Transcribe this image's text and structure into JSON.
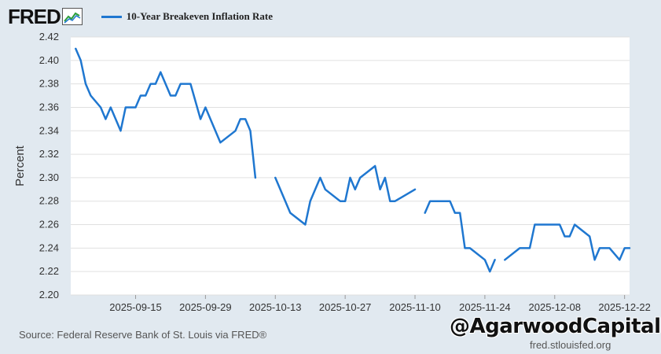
{
  "header": {
    "logo_text": "FRED",
    "logo_icon": "trend-line-icon",
    "legend_label": "10-Year Breakeven Inflation Rate",
    "series_color": "#1f77d0"
  },
  "footer": {
    "source": "Source: Federal Reserve Bank of St. Louis via FRED®",
    "url": "fred.stlouisfed.org",
    "watermark": "@AgarwoodCapital"
  },
  "chart_data": {
    "type": "line",
    "ylabel": "Percent",
    "ylim": [
      2.2,
      2.42
    ],
    "yticks": [
      "2.20",
      "2.22",
      "2.24",
      "2.26",
      "2.28",
      "2.30",
      "2.32",
      "2.34",
      "2.36",
      "2.38",
      "2.40",
      "2.42"
    ],
    "xlim": [
      "2025-09-02",
      "2025-12-23"
    ],
    "xticks": [
      "2025-09-15",
      "2025-09-29",
      "2025-10-13",
      "2025-10-27",
      "2025-11-10",
      "2025-11-24",
      "2025-12-08",
      "2025-12-22"
    ],
    "grid": true,
    "series": [
      {
        "name": "10-Year Breakeven Inflation Rate",
        "segments": [
          [
            [
              "2025-09-03",
              2.41
            ],
            [
              "2025-09-04",
              2.4
            ],
            [
              "2025-09-05",
              2.38
            ],
            [
              "2025-09-06",
              2.37
            ],
            [
              "2025-09-08",
              2.36
            ],
            [
              "2025-09-09",
              2.35
            ],
            [
              "2025-09-10",
              2.36
            ],
            [
              "2025-09-12",
              2.34
            ],
            [
              "2025-09-13",
              2.36
            ],
            [
              "2025-09-15",
              2.36
            ],
            [
              "2025-09-16",
              2.37
            ],
            [
              "2025-09-17",
              2.37
            ],
            [
              "2025-09-18",
              2.38
            ],
            [
              "2025-09-19",
              2.38
            ],
            [
              "2025-09-20",
              2.39
            ],
            [
              "2025-09-22",
              2.37
            ],
            [
              "2025-09-23",
              2.37
            ],
            [
              "2025-09-24",
              2.38
            ],
            [
              "2025-09-26",
              2.38
            ],
            [
              "2025-09-28",
              2.35
            ],
            [
              "2025-09-29",
              2.36
            ],
            [
              "2025-10-02",
              2.33
            ],
            [
              "2025-10-05",
              2.34
            ],
            [
              "2025-10-06",
              2.35
            ],
            [
              "2025-10-07",
              2.35
            ],
            [
              "2025-10-08",
              2.34
            ],
            [
              "2025-10-09",
              2.3
            ]
          ],
          [
            [
              "2025-10-13",
              2.3
            ],
            [
              "2025-10-16",
              2.27
            ],
            [
              "2025-10-19",
              2.26
            ],
            [
              "2025-10-20",
              2.28
            ],
            [
              "2025-10-22",
              2.3
            ],
            [
              "2025-10-23",
              2.29
            ],
            [
              "2025-10-26",
              2.28
            ],
            [
              "2025-10-27",
              2.28
            ],
            [
              "2025-10-28",
              2.3
            ],
            [
              "2025-10-29",
              2.29
            ],
            [
              "2025-10-30",
              2.3
            ],
            [
              "2025-11-02",
              2.31
            ],
            [
              "2025-11-03",
              2.29
            ],
            [
              "2025-11-04",
              2.3
            ],
            [
              "2025-11-05",
              2.28
            ],
            [
              "2025-11-06",
              2.28
            ],
            [
              "2025-11-10",
              2.29
            ]
          ],
          [
            [
              "2025-11-12",
              2.27
            ],
            [
              "2025-11-13",
              2.28
            ],
            [
              "2025-11-16",
              2.28
            ],
            [
              "2025-11-17",
              2.28
            ],
            [
              "2025-11-18",
              2.27
            ],
            [
              "2025-11-19",
              2.27
            ],
            [
              "2025-11-20",
              2.24
            ],
            [
              "2025-11-21",
              2.24
            ],
            [
              "2025-11-24",
              2.23
            ],
            [
              "2025-11-25",
              2.22
            ],
            [
              "2025-11-26",
              2.23
            ]
          ],
          [
            [
              "2025-11-28",
              2.23
            ],
            [
              "2025-12-01",
              2.24
            ],
            [
              "2025-12-03",
              2.24
            ],
            [
              "2025-12-04",
              2.26
            ],
            [
              "2025-12-09",
              2.26
            ],
            [
              "2025-12-10",
              2.25
            ],
            [
              "2025-12-11",
              2.25
            ],
            [
              "2025-12-12",
              2.26
            ],
            [
              "2025-12-15",
              2.25
            ],
            [
              "2025-12-16",
              2.23
            ],
            [
              "2025-12-17",
              2.24
            ],
            [
              "2025-12-19",
              2.24
            ],
            [
              "2025-12-21",
              2.23
            ],
            [
              "2025-12-22",
              2.24
            ],
            [
              "2025-12-23",
              2.24
            ]
          ]
        ]
      }
    ]
  }
}
